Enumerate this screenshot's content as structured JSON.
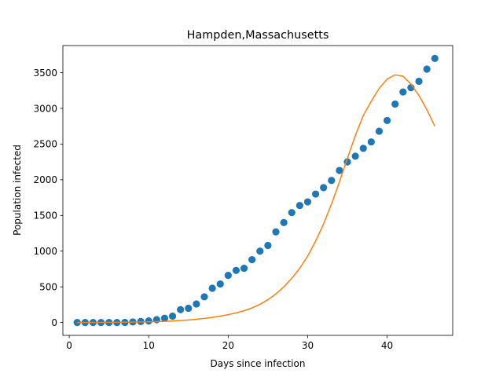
{
  "chart_data": {
    "type": "scatter",
    "title": "Hampden,Massachusetts",
    "xlabel": "Days since infection",
    "ylabel": "Population infected",
    "xlim": [
      -0.8,
      48.25
    ],
    "ylim": [
      -180,
      3880
    ],
    "x_ticks": [
      0,
      10,
      20,
      30,
      40
    ],
    "y_ticks": [
      0,
      500,
      1000,
      1500,
      2000,
      2500,
      3000,
      3500
    ],
    "grid": false,
    "series": [
      {
        "kind": "scatter",
        "color": "#1f77b4",
        "x": [
          1,
          2,
          3,
          4,
          5,
          6,
          7,
          8,
          9,
          10,
          11,
          12,
          13,
          14,
          15,
          16,
          17,
          18,
          19,
          20,
          21,
          22,
          23,
          24,
          25,
          26,
          27,
          28,
          29,
          30,
          31,
          32,
          33,
          34,
          35,
          36,
          37,
          38,
          39,
          40,
          41,
          42,
          43,
          44,
          45,
          46
        ],
        "y": [
          0,
          0,
          0,
          0,
          0,
          0,
          2,
          8,
          14,
          22,
          40,
          60,
          90,
          180,
          200,
          260,
          360,
          480,
          540,
          660,
          730,
          760,
          880,
          1000,
          1080,
          1270,
          1400,
          1540,
          1640,
          1690,
          1800,
          1890,
          1990,
          2130,
          2250,
          2330,
          2440,
          2530,
          2680,
          2830,
          3060,
          3230,
          3290,
          3380,
          3550,
          3700
        ]
      },
      {
        "kind": "line",
        "color": "#ff7f0e",
        "x": [
          1,
          2,
          3,
          4,
          5,
          6,
          7,
          8,
          9,
          10,
          11,
          12,
          13,
          14,
          15,
          16,
          17,
          18,
          19,
          20,
          21,
          22,
          23,
          24,
          25,
          26,
          27,
          28,
          29,
          30,
          31,
          32,
          33,
          34,
          35,
          36,
          37,
          38,
          39,
          40,
          41,
          42,
          43,
          44,
          45,
          46
        ],
        "y": [
          0,
          0,
          1,
          1,
          2,
          3,
          4,
          6,
          8,
          10,
          13,
          17,
          22,
          28,
          36,
          46,
          58,
          72,
          90,
          110,
          135,
          165,
          205,
          255,
          320,
          400,
          500,
          620,
          760,
          930,
          1140,
          1380,
          1660,
          1970,
          2300,
          2620,
          2900,
          3100,
          3280,
          3410,
          3470,
          3450,
          3340,
          3180,
          2980,
          2750
        ]
      }
    ]
  }
}
